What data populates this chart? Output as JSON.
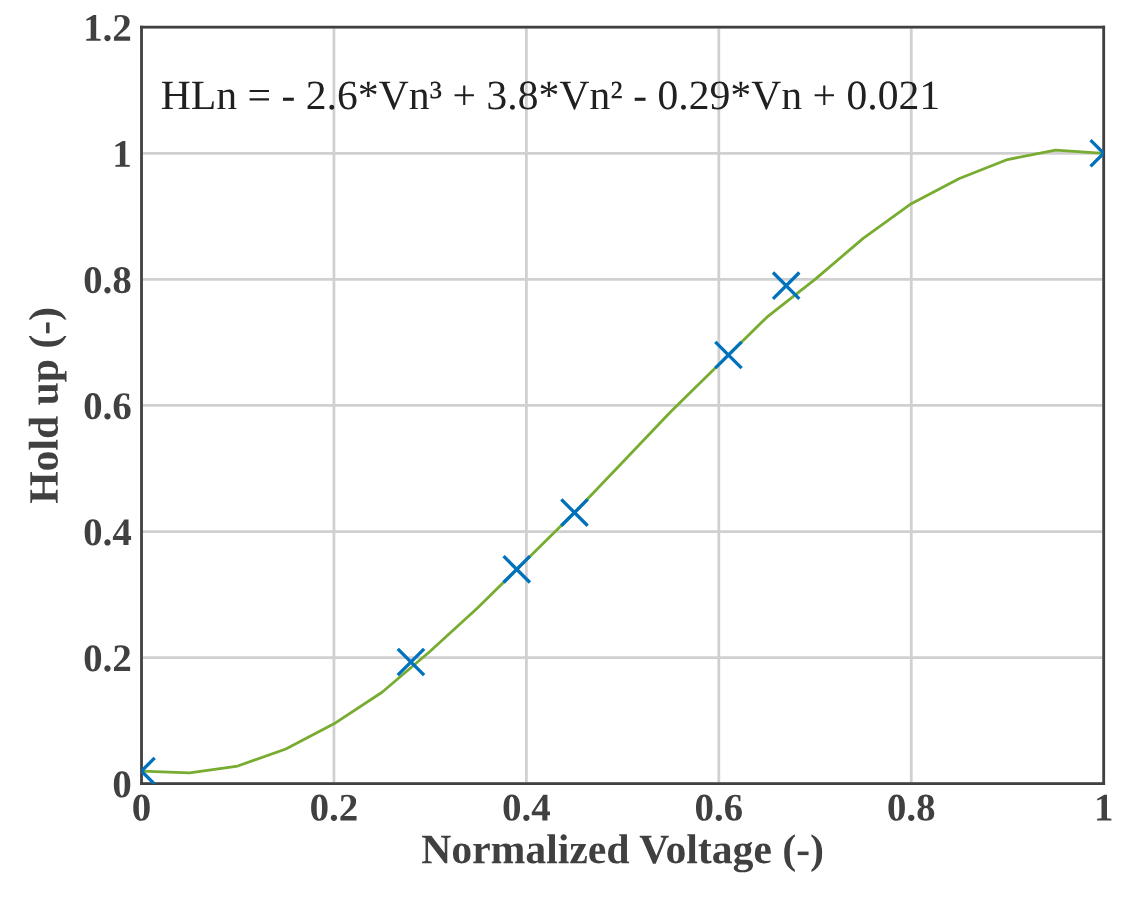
{
  "chart_data": {
    "type": "scatter",
    "xlabel": "Normalized Voltage (-)",
    "ylabel": "Hold up (-)",
    "annotations": [
      "HLn = - 2.6*Vn³ + 3.8*Vn² - 0.29*Vn + 0.021"
    ],
    "series": [
      {
        "color": "#0072bd",
        "marker": "cross",
        "x": [
          0,
          0.28,
          0.39,
          0.45,
          0.61,
          0.67,
          1.0
        ],
        "values": [
          0.02,
          0.193,
          0.34,
          0.43,
          0.68,
          0.79,
          1.0
        ]
      },
      {
        "type": "line",
        "color": "#77ac30",
        "marker": "none",
        "x": [
          0,
          0.05,
          0.1,
          0.15,
          0.2,
          0.25,
          0.3,
          0.35,
          0.4,
          0.45,
          0.5,
          0.55,
          0.6,
          0.65,
          0.7,
          0.75,
          0.8,
          0.85,
          0.9,
          0.95,
          1.0
        ],
        "values": [
          0.02,
          0.017,
          0.028,
          0.055,
          0.095,
          0.145,
          0.21,
          0.28,
          0.355,
          0.43,
          0.51,
          0.59,
          0.665,
          0.74,
          0.8,
          0.865,
          0.92,
          0.96,
          0.99,
          1.005,
          1.0
        ]
      }
    ],
    "xlim": [
      0,
      1
    ],
    "ylim": [
      0,
      1.2
    ],
    "xticks": [
      0,
      0.2,
      0.4,
      0.6,
      0.8,
      1
    ],
    "yticks": [
      0,
      0.2,
      0.4,
      0.6,
      0.8,
      1,
      1.2
    ],
    "grid": true
  }
}
